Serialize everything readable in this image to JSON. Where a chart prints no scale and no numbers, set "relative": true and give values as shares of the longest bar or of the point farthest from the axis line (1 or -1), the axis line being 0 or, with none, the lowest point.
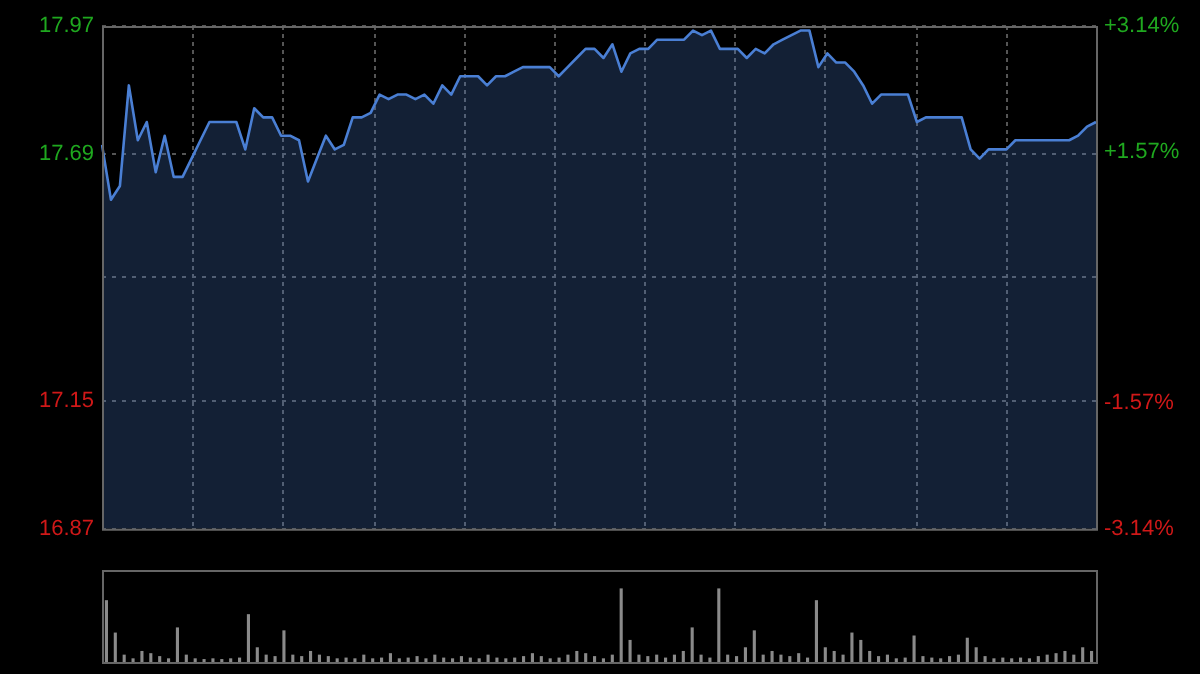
{
  "chart_data": [
    {
      "type": "area",
      "categories": [
        null,
        null,
        null,
        null,
        null,
        null,
        null,
        null,
        null,
        null,
        null,
        null,
        null,
        null,
        null,
        null,
        null,
        null,
        null,
        null,
        null,
        null,
        null,
        null,
        null,
        null,
        null,
        null,
        null,
        null,
        null,
        null,
        null,
        null,
        null,
        null,
        null,
        null,
        null,
        null,
        null,
        null,
        null,
        null,
        null,
        null,
        null,
        null,
        null,
        null,
        null,
        null,
        null,
        null,
        null,
        null,
        null,
        null,
        null,
        null,
        null,
        null,
        null,
        null,
        null,
        null,
        null,
        null,
        null,
        null,
        null,
        null,
        null,
        null,
        null,
        null,
        null,
        null,
        null,
        null,
        null,
        null,
        null,
        null,
        null,
        null,
        null,
        null,
        null,
        null,
        null,
        null,
        null,
        null,
        null,
        null,
        null,
        null,
        null,
        null,
        null,
        null,
        null,
        null,
        null,
        null,
        null,
        null,
        null,
        null,
        null,
        null
      ],
      "series": [
        {
          "color": "#4a7fd4",
          "values": [
            17.71,
            17.59,
            17.62,
            17.84,
            17.72,
            17.76,
            17.65,
            17.73,
            17.64,
            17.64,
            17.68,
            17.72,
            17.76,
            17.76,
            17.76,
            17.76,
            17.7,
            17.79,
            17.77,
            17.77,
            17.73,
            17.73,
            17.72,
            17.63,
            17.68,
            17.73,
            17.7,
            17.71,
            17.77,
            17.77,
            17.78,
            17.82,
            17.81,
            17.82,
            17.82,
            17.81,
            17.82,
            17.8,
            17.84,
            17.82,
            17.86,
            17.86,
            17.86,
            17.84,
            17.86,
            17.86,
            17.87,
            17.88,
            17.88,
            17.88,
            17.88,
            17.86,
            17.88,
            17.9,
            17.92,
            17.92,
            17.9,
            17.93,
            17.87,
            17.91,
            17.92,
            17.92,
            17.94,
            17.94,
            17.94,
            17.94,
            17.96,
            17.95,
            17.96,
            17.92,
            17.92,
            17.92,
            17.9,
            17.92,
            17.91,
            17.93,
            17.94,
            17.95,
            17.96,
            17.96,
            17.88,
            17.91,
            17.89,
            17.89,
            17.87,
            17.84,
            17.8,
            17.82,
            17.82,
            17.82,
            17.82,
            17.76,
            17.77,
            17.77,
            17.77,
            17.77,
            17.77,
            17.7,
            17.68,
            17.7,
            17.7,
            17.7,
            17.72,
            17.72,
            17.72,
            17.72,
            17.72,
            17.72,
            17.72,
            17.73,
            17.75,
            17.76
          ]
        }
      ],
      "ylim": [
        16.87,
        17.97
      ],
      "yticks": [
        16.87,
        17.15,
        {
          "value": 17.42,
          "label": null
        },
        17.69,
        17.97
      ],
      "y2lim": [
        -3.14,
        3.14
      ],
      "y2ticks": [
        {
          "value": -3.14,
          "label": "-3.14%"
        },
        {
          "value": -1.57,
          "label": "-1.57%"
        },
        {
          "value": 1.57,
          "label": "+1.57%"
        },
        {
          "value": 3.14,
          "label": "+3.14%"
        }
      ],
      "grid": true,
      "line_style": "solid",
      "marker": "none"
    },
    {
      "type": "bar",
      "relative": true,
      "categories": [
        null,
        null,
        null,
        null,
        null,
        null,
        null,
        null,
        null,
        null,
        null,
        null,
        null,
        null,
        null,
        null,
        null,
        null,
        null,
        null,
        null,
        null,
        null,
        null,
        null,
        null,
        null,
        null,
        null,
        null,
        null,
        null,
        null,
        null,
        null,
        null,
        null,
        null,
        null,
        null,
        null,
        null,
        null,
        null,
        null,
        null,
        null,
        null,
        null,
        null,
        null,
        null,
        null,
        null,
        null,
        null,
        null,
        null,
        null,
        null,
        null,
        null,
        null,
        null,
        null,
        null,
        null,
        null,
        null,
        null,
        null,
        null,
        null,
        null,
        null,
        null,
        null,
        null,
        null,
        null,
        null,
        null,
        null,
        null,
        null,
        null,
        null,
        null,
        null,
        null,
        null,
        null,
        null,
        null,
        null,
        null,
        null,
        null,
        null,
        null,
        null,
        null,
        null,
        null,
        null,
        null,
        null,
        null,
        null,
        null,
        null,
        null
      ],
      "series": [
        {
          "color": "#8a8a8a",
          "values": [
            0.84,
            0.4,
            0.1,
            0.05,
            0.15,
            0.12,
            0.08,
            0.05,
            0.47,
            0.1,
            0.05,
            0.04,
            0.05,
            0.04,
            0.05,
            0.06,
            0.65,
            0.2,
            0.1,
            0.08,
            0.43,
            0.1,
            0.08,
            0.15,
            0.1,
            0.08,
            0.05,
            0.06,
            0.05,
            0.1,
            0.05,
            0.06,
            0.12,
            0.05,
            0.06,
            0.08,
            0.05,
            0.1,
            0.06,
            0.05,
            0.08,
            0.06,
            0.05,
            0.1,
            0.06,
            0.05,
            0.06,
            0.08,
            0.12,
            0.08,
            0.05,
            0.06,
            0.1,
            0.15,
            0.12,
            0.08,
            0.05,
            0.1,
            1.0,
            0.3,
            0.1,
            0.08,
            0.1,
            0.06,
            0.1,
            0.15,
            0.47,
            0.1,
            0.06,
            1.0,
            0.1,
            0.08,
            0.2,
            0.43,
            0.1,
            0.15,
            0.1,
            0.08,
            0.12,
            0.06,
            0.84,
            0.2,
            0.15,
            0.1,
            0.4,
            0.3,
            0.15,
            0.08,
            0.1,
            0.05,
            0.06,
            0.36,
            0.08,
            0.06,
            0.05,
            0.08,
            0.1,
            0.33,
            0.2,
            0.08,
            0.05,
            0.06,
            0.05,
            0.06,
            0.05,
            0.08,
            0.1,
            0.12,
            0.15,
            0.1,
            0.2,
            0.15
          ]
        }
      ]
    }
  ]
}
